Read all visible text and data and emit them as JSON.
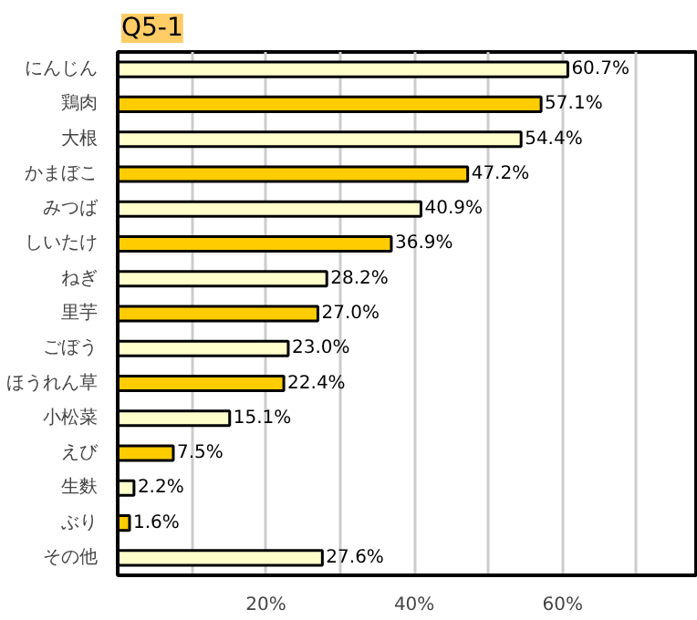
{
  "chart_data": {
    "type": "bar",
    "orientation": "horizontal",
    "title": "Q5-1",
    "categories": [
      "にんじん",
      "鶏肉",
      "大根",
      "かまぼこ",
      "みつば",
      "しいたけ",
      "ねぎ",
      "里芋",
      "ごぼう",
      "ほうれん草",
      "小松菜",
      "えび",
      "生麩",
      "ぶり",
      "その他"
    ],
    "values": [
      60.7,
      57.1,
      54.4,
      47.2,
      40.9,
      36.9,
      28.2,
      27.0,
      23.0,
      22.4,
      15.1,
      7.5,
      2.2,
      1.6,
      27.6
    ],
    "value_labels": [
      "60.7%",
      "57.1%",
      "54.4%",
      "47.2%",
      "40.9%",
      "36.9%",
      "28.2%",
      "27.0%",
      "23.0%",
      "22.4%",
      "15.1%",
      "7.5%",
      "2.2%",
      "1.6%",
      "27.6%"
    ],
    "colors": [
      "#ffffcc",
      "#ffcc00",
      "#ffffcc",
      "#ffcc00",
      "#ffffcc",
      "#ffcc00",
      "#ffffcc",
      "#ffcc00",
      "#ffffcc",
      "#ffcc00",
      "#ffffcc",
      "#ffcc00",
      "#ffffcc",
      "#ffcc00",
      "#ffffcc"
    ],
    "xlim": [
      0,
      78
    ],
    "xticks": [
      {
        "value": 10,
        "label": null
      },
      {
        "value": 20,
        "label": "20%"
      },
      {
        "value": 30,
        "label": null
      },
      {
        "value": 40,
        "label": "40%"
      },
      {
        "value": 50,
        "label": null
      },
      {
        "value": 60,
        "label": "60%"
      },
      {
        "value": 70,
        "label": null
      }
    ],
    "grid": "x"
  }
}
